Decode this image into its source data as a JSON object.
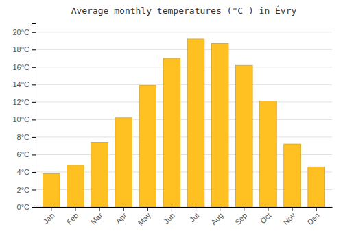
{
  "chart_data": {
    "type": "bar",
    "title": "Average monthly temperatures (°C ) in Évry",
    "categories": [
      "Jan",
      "Feb",
      "Mar",
      "Apr",
      "May",
      "Jun",
      "Jul",
      "Aug",
      "Sep",
      "Oct",
      "Nov",
      "Dec"
    ],
    "values": [
      3.8,
      4.8,
      7.4,
      10.2,
      13.9,
      17.0,
      19.2,
      18.7,
      16.2,
      12.1,
      7.2,
      4.6
    ],
    "color": "#FFC022",
    "ylim": [
      0,
      21
    ],
    "yticks": [
      {
        "value": 0,
        "label": "0°C"
      },
      {
        "value": 2,
        "label": "2°C"
      },
      {
        "value": 4,
        "label": "4°C"
      },
      {
        "value": 6,
        "label": "6°C"
      },
      {
        "value": 8,
        "label": "8°C"
      },
      {
        "value": 10,
        "label": "10°C"
      },
      {
        "value": 12,
        "label": "12°C"
      },
      {
        "value": 14,
        "label": "14°C"
      },
      {
        "value": 16,
        "label": "16°C"
      },
      {
        "value": 18,
        "label": "18°C"
      },
      {
        "value": 20,
        "label": "20°C"
      }
    ],
    "grid": true
  }
}
